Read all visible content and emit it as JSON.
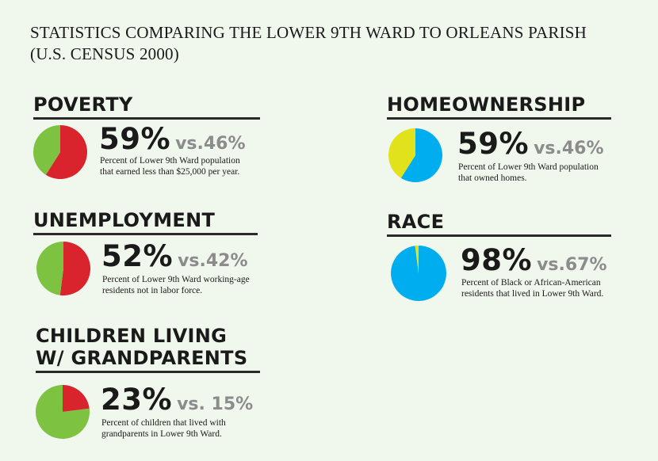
{
  "title": {
    "line1": "STATISTICS COMPARING THE LOWER 9TH WARD TO ORLEANS PARISH",
    "line2": "(U.S. CENSUS 2000)"
  },
  "colors": {
    "red": "#d9232d",
    "green": "#7ec242",
    "yellow": "#e2e21c",
    "blue": "#00aeef"
  },
  "chart_data": [
    {
      "type": "pie",
      "title": "POVERTY",
      "value_pct": 59,
      "comparison_pct": 46,
      "value_label": "59%",
      "comparison_label": "vs.46%",
      "description": [
        "Percent of Lower 9th Ward population",
        "that earned less than $25,000 per year."
      ],
      "slices": [
        {
          "value": 59,
          "color": "#d9232d"
        },
        {
          "value": 41,
          "color": "#7ec242"
        }
      ]
    },
    {
      "type": "pie",
      "title": "UNEMPLOYMENT",
      "value_pct": 52,
      "comparison_pct": 42,
      "value_label": "52%",
      "comparison_label": "vs.42%",
      "description": [
        "Percent of Lower 9th Ward working-age",
        "residents not in labor force."
      ],
      "slices": [
        {
          "value": 52,
          "color": "#d9232d"
        },
        {
          "value": 48,
          "color": "#7ec242"
        }
      ]
    },
    {
      "type": "pie",
      "title_lines": [
        "CHILDREN LIVING",
        "W/ GRANDPARENTS"
      ],
      "value_pct": 23,
      "comparison_pct": 15,
      "value_label": "23%",
      "comparison_label": "vs. 15%",
      "description": [
        "Percent of children that lived with",
        "grandparents in Lower 9th Ward."
      ],
      "slices": [
        {
          "value": 23,
          "color": "#d9232d"
        },
        {
          "value": 77,
          "color": "#7ec242"
        }
      ]
    },
    {
      "type": "pie",
      "title": "HOMEOWNERSHIP",
      "value_pct": 59,
      "comparison_pct": 46,
      "value_label": "59%",
      "comparison_label": "vs.46%",
      "description": [
        "Percent of Lower 9th Ward population",
        "that owned homes."
      ],
      "slices": [
        {
          "value": 59,
          "color": "#00aeef"
        },
        {
          "value": 41,
          "color": "#e2e21c"
        }
      ]
    },
    {
      "type": "pie",
      "title": "RACE",
      "value_pct": 98,
      "comparison_pct": 67,
      "value_label": "98%",
      "comparison_label": "vs.67%",
      "description": [
        "Percent of Black or African-American",
        "residents that lived in Lower 9th Ward."
      ],
      "slices": [
        {
          "value": 98,
          "color": "#00aeef"
        },
        {
          "value": 2,
          "color": "#e2e21c"
        }
      ]
    }
  ]
}
